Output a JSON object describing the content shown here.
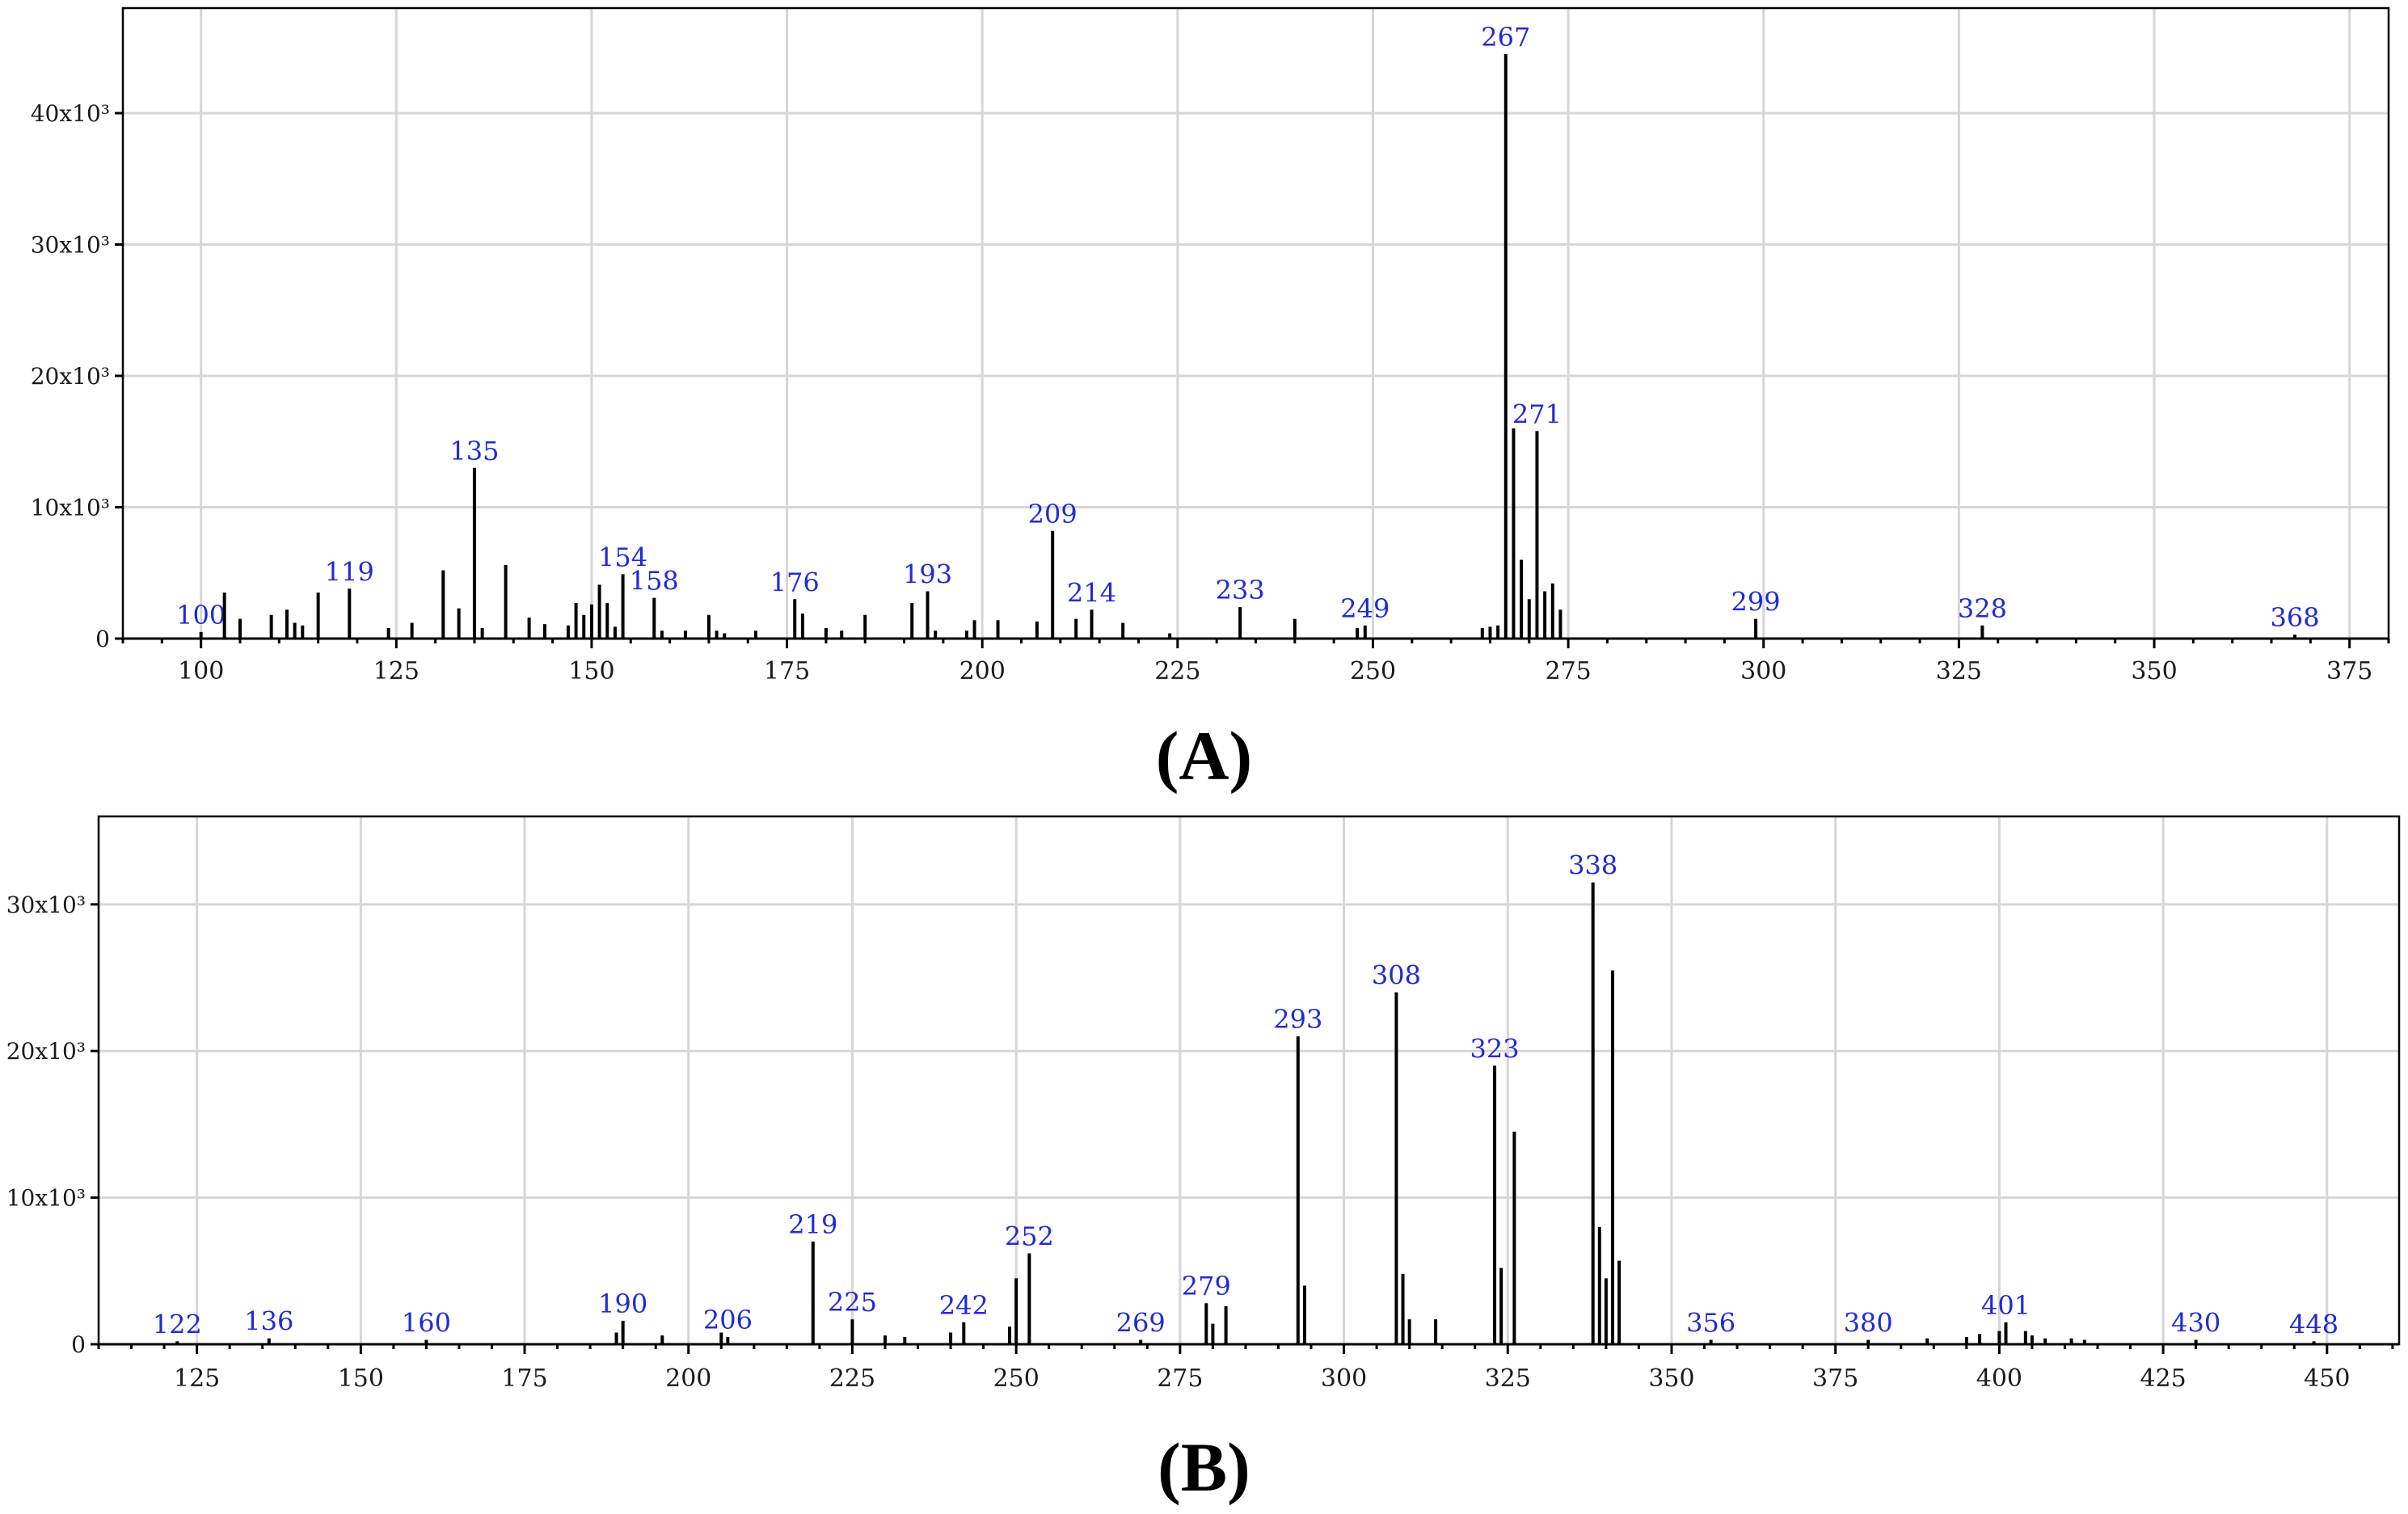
{
  "chart_data": [
    {
      "type": "bar",
      "panel_label": "(A)",
      "title": "",
      "xlabel": "",
      "ylabel": "",
      "xlim": [
        90,
        380
      ],
      "ylim": [
        0,
        48
      ],
      "x_ticks": [
        100,
        125,
        150,
        175,
        200,
        225,
        250,
        275,
        300,
        325,
        350,
        375
      ],
      "y_ticks": [
        {
          "value": 0,
          "label": "0"
        },
        {
          "value": 10,
          "label": "10x10³"
        },
        {
          "value": 20,
          "label": "20x10³"
        },
        {
          "value": 30,
          "label": "30x10³"
        },
        {
          "value": 40,
          "label": "40x10³"
        }
      ],
      "grid": true,
      "peaks": [
        {
          "x": 100,
          "y": 0.5,
          "label": "100"
        },
        {
          "x": 103,
          "y": 3.5
        },
        {
          "x": 105,
          "y": 1.5
        },
        {
          "x": 109,
          "y": 1.8
        },
        {
          "x": 111,
          "y": 2.2
        },
        {
          "x": 112,
          "y": 1.2
        },
        {
          "x": 113,
          "y": 1.0
        },
        {
          "x": 115,
          "y": 3.5
        },
        {
          "x": 119,
          "y": 3.8,
          "label": "119"
        },
        {
          "x": 124,
          "y": 0.8
        },
        {
          "x": 127,
          "y": 1.2
        },
        {
          "x": 131,
          "y": 5.2
        },
        {
          "x": 133,
          "y": 2.3
        },
        {
          "x": 135,
          "y": 13.0,
          "label": "135"
        },
        {
          "x": 136,
          "y": 0.8
        },
        {
          "x": 139,
          "y": 5.6
        },
        {
          "x": 142,
          "y": 1.6
        },
        {
          "x": 144,
          "y": 1.1
        },
        {
          "x": 147,
          "y": 1.0
        },
        {
          "x": 148,
          "y": 2.7
        },
        {
          "x": 149,
          "y": 1.8
        },
        {
          "x": 150,
          "y": 2.6
        },
        {
          "x": 151,
          "y": 4.1
        },
        {
          "x": 152,
          "y": 2.7
        },
        {
          "x": 153,
          "y": 0.9
        },
        {
          "x": 154,
          "y": 4.9,
          "label": "154"
        },
        {
          "x": 158,
          "y": 3.1,
          "label": "158"
        },
        {
          "x": 159,
          "y": 0.6
        },
        {
          "x": 162,
          "y": 0.6
        },
        {
          "x": 165,
          "y": 1.8
        },
        {
          "x": 166,
          "y": 0.6
        },
        {
          "x": 167,
          "y": 0.4
        },
        {
          "x": 171,
          "y": 0.6
        },
        {
          "x": 176,
          "y": 3.0,
          "label": "176"
        },
        {
          "x": 177,
          "y": 1.9
        },
        {
          "x": 180,
          "y": 0.8
        },
        {
          "x": 182,
          "y": 0.6
        },
        {
          "x": 185,
          "y": 1.8
        },
        {
          "x": 191,
          "y": 2.7
        },
        {
          "x": 193,
          "y": 3.6,
          "label": "193"
        },
        {
          "x": 194,
          "y": 0.6
        },
        {
          "x": 198,
          "y": 0.6
        },
        {
          "x": 199,
          "y": 1.4
        },
        {
          "x": 202,
          "y": 1.4
        },
        {
          "x": 207,
          "y": 1.3
        },
        {
          "x": 209,
          "y": 8.2,
          "label": "209"
        },
        {
          "x": 212,
          "y": 1.5
        },
        {
          "x": 214,
          "y": 2.2,
          "label": "214"
        },
        {
          "x": 218,
          "y": 1.2
        },
        {
          "x": 224,
          "y": 0.4
        },
        {
          "x": 233,
          "y": 2.4,
          "label": "233"
        },
        {
          "x": 240,
          "y": 1.5
        },
        {
          "x": 248,
          "y": 0.8
        },
        {
          "x": 249,
          "y": 1.0,
          "label": "249"
        },
        {
          "x": 264,
          "y": 0.8
        },
        {
          "x": 265,
          "y": 0.9
        },
        {
          "x": 266,
          "y": 1.0
        },
        {
          "x": 267,
          "y": 44.5,
          "label": "267"
        },
        {
          "x": 268,
          "y": 16.0
        },
        {
          "x": 269,
          "y": 6.0
        },
        {
          "x": 270,
          "y": 3.0
        },
        {
          "x": 271,
          "y": 15.8,
          "label": "271"
        },
        {
          "x": 272,
          "y": 3.6
        },
        {
          "x": 273,
          "y": 4.2
        },
        {
          "x": 274,
          "y": 2.2
        },
        {
          "x": 299,
          "y": 1.5,
          "label": "299"
        },
        {
          "x": 328,
          "y": 1.0,
          "label": "328"
        },
        {
          "x": 368,
          "y": 0.3,
          "label": "368"
        }
      ]
    },
    {
      "type": "bar",
      "panel_label": "(B)",
      "title": "",
      "xlabel": "",
      "ylabel": "",
      "xlim": [
        110,
        461
      ],
      "ylim": [
        0,
        36
      ],
      "x_ticks": [
        125,
        150,
        175,
        200,
        225,
        250,
        275,
        300,
        325,
        350,
        375,
        400,
        425,
        450
      ],
      "y_ticks": [
        {
          "value": 0,
          "label": "0"
        },
        {
          "value": 10,
          "label": "10x10³"
        },
        {
          "value": 20,
          "label": "20x10³"
        },
        {
          "value": 30,
          "label": "30x10³"
        }
      ],
      "grid": true,
      "peaks": [
        {
          "x": 122,
          "y": 0.2,
          "label": "122"
        },
        {
          "x": 136,
          "y": 0.4,
          "label": "136"
        },
        {
          "x": 160,
          "y": 0.3,
          "label": "160"
        },
        {
          "x": 189,
          "y": 0.8
        },
        {
          "x": 190,
          "y": 1.6,
          "label": "190"
        },
        {
          "x": 196,
          "y": 0.6
        },
        {
          "x": 205,
          "y": 0.8
        },
        {
          "x": 206,
          "y": 0.5,
          "label": "206"
        },
        {
          "x": 219,
          "y": 7.0,
          "label": "219"
        },
        {
          "x": 225,
          "y": 1.7,
          "label": "225"
        },
        {
          "x": 230,
          "y": 0.6
        },
        {
          "x": 233,
          "y": 0.5
        },
        {
          "x": 240,
          "y": 0.8
        },
        {
          "x": 242,
          "y": 1.5,
          "label": "242"
        },
        {
          "x": 249,
          "y": 1.2
        },
        {
          "x": 250,
          "y": 4.5
        },
        {
          "x": 252,
          "y": 6.2,
          "label": "252"
        },
        {
          "x": 269,
          "y": 0.3,
          "label": "269"
        },
        {
          "x": 279,
          "y": 2.8,
          "label": "279"
        },
        {
          "x": 280,
          "y": 1.4
        },
        {
          "x": 282,
          "y": 2.6
        },
        {
          "x": 293,
          "y": 21.0,
          "label": "293"
        },
        {
          "x": 294,
          "y": 4.0
        },
        {
          "x": 308,
          "y": 24.0,
          "label": "308"
        },
        {
          "x": 309,
          "y": 4.8
        },
        {
          "x": 310,
          "y": 1.7
        },
        {
          "x": 314,
          "y": 1.7
        },
        {
          "x": 323,
          "y": 19.0,
          "label": "323"
        },
        {
          "x": 324,
          "y": 5.2
        },
        {
          "x": 326,
          "y": 14.5
        },
        {
          "x": 338,
          "y": 31.5,
          "label": "338"
        },
        {
          "x": 339,
          "y": 8.0
        },
        {
          "x": 340,
          "y": 4.5
        },
        {
          "x": 341,
          "y": 25.5
        },
        {
          "x": 342,
          "y": 5.7
        },
        {
          "x": 356,
          "y": 0.3,
          "label": "356"
        },
        {
          "x": 380,
          "y": 0.3,
          "label": "380"
        },
        {
          "x": 389,
          "y": 0.4
        },
        {
          "x": 395,
          "y": 0.5
        },
        {
          "x": 397,
          "y": 0.7
        },
        {
          "x": 400,
          "y": 0.9
        },
        {
          "x": 401,
          "y": 1.5,
          "label": "401"
        },
        {
          "x": 404,
          "y": 0.9
        },
        {
          "x": 405,
          "y": 0.6
        },
        {
          "x": 407,
          "y": 0.4
        },
        {
          "x": 411,
          "y": 0.4
        },
        {
          "x": 413,
          "y": 0.3
        },
        {
          "x": 430,
          "y": 0.3,
          "label": "430"
        },
        {
          "x": 448,
          "y": 0.2,
          "label": "448"
        }
      ]
    }
  ]
}
